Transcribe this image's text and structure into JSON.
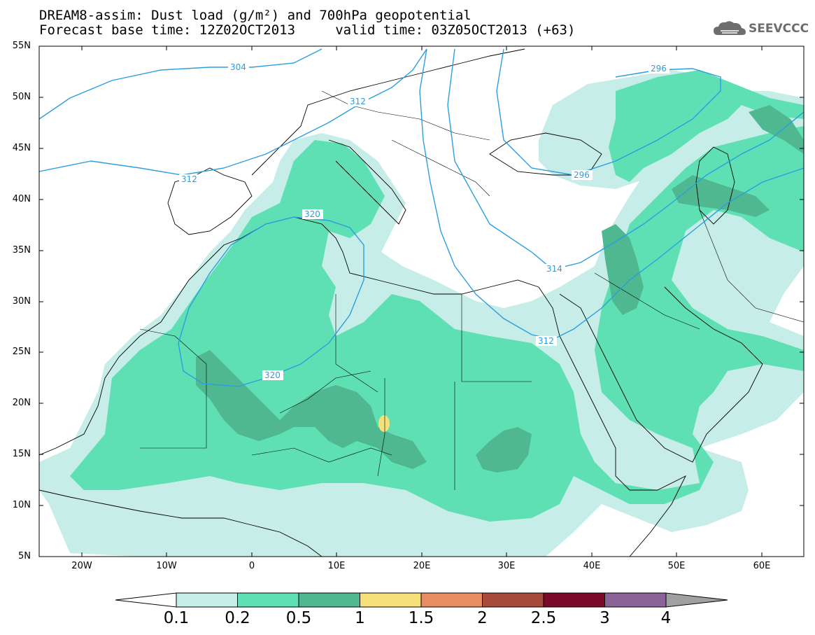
{
  "header": {
    "title_line1": "DREAM8-assim: Dust load (g/m²) and 700hPa geopotential",
    "title_line2": "Forecast base time: 12Z02OCT2013     valid time: 03Z05OCT2013 (+63)",
    "logo_text": "SEEVCCC"
  },
  "map": {
    "lat_labels": [
      "55N",
      "50N",
      "45N",
      "40N",
      "35N",
      "30N",
      "25N",
      "20N",
      "15N",
      "10N",
      "5N"
    ],
    "lon_labels": [
      "20W",
      "10W",
      "0",
      "10E",
      "20E",
      "30E",
      "40E",
      "50E",
      "60E"
    ],
    "contour_labels": [
      "304",
      "312",
      "296",
      "312",
      "320",
      "296",
      "314",
      "312",
      "320"
    ],
    "colors": {
      "ocean": "#ffffff",
      "coast": "#000000",
      "contour": "#2b9ee0",
      "dust_01": "#c6ede7",
      "dust_02": "#5ee0b4",
      "dust_05": "#4fb890",
      "dust_1": "#f5e07a"
    }
  },
  "colorbar": {
    "labels": [
      "0.1",
      "0.2",
      "0.5",
      "1",
      "1.5",
      "2",
      "2.5",
      "3",
      "4"
    ],
    "colors": [
      "#c6ede7",
      "#5ee0b4",
      "#4fb890",
      "#f5e07a",
      "#e88c64",
      "#a84a3c",
      "#7a0a28",
      "#8a6498"
    ],
    "under_color": "#ffffff",
    "over_color": "#a0a0a0"
  }
}
